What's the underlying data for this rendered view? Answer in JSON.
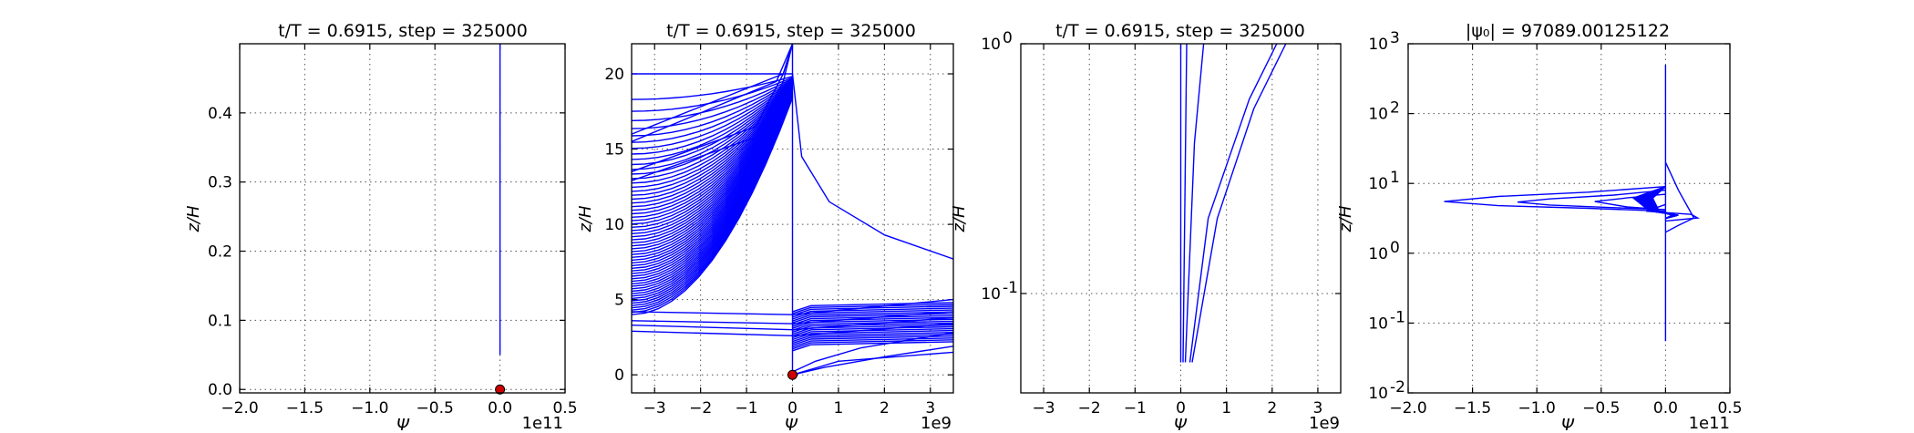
{
  "chart_data": [
    {
      "type": "line",
      "title": "t/T = 0.6915, step = 325000",
      "xlabel": "Ψ",
      "ylabel": "z/H",
      "x_offset_label": "1e11",
      "x_scale": "linear",
      "y_scale": "linear",
      "xlim": [
        -2.0,
        0.5
      ],
      "ylim": [
        -0.005,
        0.5
      ],
      "xticks": [
        -2.0,
        -1.5,
        -1.0,
        -0.5,
        0.0,
        0.5
      ],
      "xtick_labels": [
        "−2.0",
        "−1.5",
        "−1.0",
        "−0.5",
        "0.0",
        "0.5"
      ],
      "yticks": [
        0.0,
        0.1,
        0.2,
        0.3,
        0.4
      ],
      "ytick_labels": [
        "0.0",
        "0.1",
        "0.2",
        "0.3",
        "0.4"
      ],
      "grid": true,
      "color": "#0000ff",
      "marker_color": "#cc0000",
      "lines": [
        {
          "x": [
            0.0,
            0.0
          ],
          "y": [
            0.05,
            0.5
          ],
          "width": 5
        }
      ],
      "markers": [
        {
          "x": 0.0,
          "y": 0.0
        }
      ]
    },
    {
      "type": "line",
      "title": "t/T = 0.6915, step = 325000",
      "xlabel": "Ψ",
      "ylabel": "z/H",
      "x_offset_label": "1e9",
      "x_scale": "linear",
      "y_scale": "linear",
      "xlim": [
        -3.5,
        3.5
      ],
      "ylim": [
        -1.2,
        22
      ],
      "xticks": [
        -3,
        -2,
        -1,
        0,
        1,
        2,
        3
      ],
      "xtick_labels": [
        "−3",
        "−2",
        "−1",
        "0",
        "1",
        "2",
        "3"
      ],
      "yticks": [
        0,
        5,
        10,
        15,
        20
      ],
      "ytick_labels": [
        "0",
        "5",
        "10",
        "15",
        "20"
      ],
      "grid": true,
      "color": "#0000ff",
      "marker_color": "#cc0000",
      "lines": [
        {
          "x": [
            0.0,
            0.0
          ],
          "y": [
            0.0,
            22.0
          ],
          "width": 4
        },
        {
          "x": [
            -3.5,
            -0.2,
            0.0
          ],
          "y": [
            16.0,
            20.0,
            22.0
          ]
        },
        {
          "x": [
            -3.5,
            -0.35,
            0.0
          ],
          "y": [
            15.5,
            19.5,
            22.0
          ]
        },
        {
          "x": [
            -3.5,
            -0.8,
            -0.2,
            0.0
          ],
          "y": [
            13.5,
            16.5,
            20.0,
            22.0
          ]
        },
        {
          "x": [
            -3.5,
            -0.8,
            -0.2,
            0.0
          ],
          "y": [
            12.9,
            15.8,
            19.5,
            22.0
          ]
        },
        {
          "x": [
            0.0,
            0.2,
            0.8,
            2.0,
            3.5
          ],
          "y": [
            20.0,
            14.5,
            11.5,
            9.3,
            7.7
          ]
        },
        {
          "x": [
            -3.5,
            0.0,
            3.5
          ],
          "y": [
            4.2,
            4.0,
            5.0
          ]
        },
        {
          "x": [
            -3.5,
            0.0,
            3.5
          ],
          "y": [
            3.6,
            3.4,
            4.2
          ]
        },
        {
          "x": [
            -3.5,
            0.0,
            3.5
          ],
          "y": [
            3.3,
            3.0,
            3.8
          ]
        },
        {
          "x": [
            -3.5,
            0.0,
            3.5
          ],
          "y": [
            2.9,
            2.6,
            3.4
          ]
        },
        {
          "x": [
            0.0,
            0.5,
            1.5,
            3.5
          ],
          "y": [
            0.2,
            0.9,
            1.8,
            2.8
          ]
        },
        {
          "x": [
            0.0,
            0.7,
            2.0,
            3.5
          ],
          "y": [
            0.0,
            0.5,
            1.2,
            1.9
          ]
        },
        {
          "x": [
            0.0,
            1.0,
            3.5
          ],
          "y": [
            0.0,
            0.9,
            1.5
          ]
        }
      ],
      "fan_left": {
        "y_top": 20,
        "y_bottom": 4.0,
        "count": 60
      },
      "fan_right": {
        "y_top": 4.8,
        "y_bottom": 2.2,
        "count": 22
      },
      "markers": [
        {
          "x": 0.0,
          "y": 0.0
        }
      ]
    },
    {
      "type": "line",
      "title": "t/T = 0.6915, step = 325000",
      "xlabel": "Ψ",
      "ylabel": "z/H",
      "x_offset_label": "1e9",
      "x_scale": "linear",
      "y_scale": "log",
      "xlim": [
        -3.5,
        3.5
      ],
      "ylim": [
        0.04,
        1.0
      ],
      "xticks": [
        -3,
        -2,
        -1,
        0,
        1,
        2,
        3
      ],
      "xtick_labels": [
        "−3",
        "−2",
        "−1",
        "0",
        "1",
        "2",
        "3"
      ],
      "yticks": [
        0.1,
        1.0
      ],
      "ytick_labels": [
        {
          "base": "10",
          "exp": "-1"
        },
        {
          "base": "10",
          "exp": "0"
        }
      ],
      "grid": true,
      "color": "#0000ff",
      "lines": [
        {
          "x": [
            0.0,
            0.0
          ],
          "y": [
            0.053,
            1.0
          ],
          "width": 4
        },
        {
          "x": [
            0.05,
            0.13
          ],
          "y": [
            0.053,
            1.0
          ]
        },
        {
          "x": [
            0.1,
            0.3,
            0.5
          ],
          "y": [
            0.053,
            0.4,
            1.0
          ]
        },
        {
          "x": [
            0.2,
            0.6,
            1.5,
            2.1
          ],
          "y": [
            0.053,
            0.2,
            0.6,
            1.0
          ]
        },
        {
          "x": [
            0.25,
            0.8,
            1.6,
            2.3
          ],
          "y": [
            0.053,
            0.2,
            0.55,
            1.0
          ]
        }
      ]
    },
    {
      "type": "line",
      "title": "|ψ₀| = 97089.00125122",
      "xlabel": "Ψ",
      "ylabel": "z/H",
      "x_offset_label": "1e11",
      "x_scale": "linear",
      "y_scale": "log",
      "xlim": [
        -2.0,
        0.5
      ],
      "ylim": [
        0.01,
        1000
      ],
      "xticks": [
        -2.0,
        -1.5,
        -1.0,
        -0.5,
        0.0,
        0.5
      ],
      "xtick_labels": [
        "−2.0",
        "−1.5",
        "−1.0",
        "−0.5",
        "0.0",
        "0.5"
      ],
      "yticks": [
        0.01,
        0.1,
        1,
        10,
        100,
        1000
      ],
      "ytick_labels": [
        {
          "base": "10",
          "exp": "-2"
        },
        {
          "base": "10",
          "exp": "-1"
        },
        {
          "base": "10",
          "exp": "0"
        },
        {
          "base": "10",
          "exp": "1"
        },
        {
          "base": "10",
          "exp": "2"
        },
        {
          "base": "10",
          "exp": "3"
        }
      ],
      "grid": true,
      "color": "#0000ff",
      "lines": [
        {
          "x": [
            0.0,
            0.0
          ],
          "y": [
            0.055,
            500
          ],
          "width": 3
        },
        {
          "x": [
            0.0,
            -0.6,
            -1.3,
            -1.72,
            -1.3,
            -0.6,
            0.0
          ],
          "y": [
            9.0,
            7.5,
            6.5,
            5.5,
            4.8,
            4.4,
            4.0
          ]
        },
        {
          "x": [
            0.0,
            -0.4,
            -0.9,
            -1.15,
            -0.9,
            -0.4,
            0.0
          ],
          "y": [
            8.0,
            6.8,
            6.0,
            5.4,
            4.9,
            4.5,
            4.2
          ]
        },
        {
          "x": [
            0.0,
            -0.3,
            -0.55,
            -0.3,
            0.0
          ],
          "y": [
            7.0,
            6.2,
            5.5,
            4.6,
            4.2
          ]
        },
        {
          "x": [
            0.0,
            0.1,
            0.22,
            0.1,
            0.0
          ],
          "y": [
            20,
            8,
            3.2,
            2.5,
            2.0
          ]
        },
        {
          "x": [
            0.0,
            -0.15,
            0.2,
            0.25,
            0.0
          ],
          "y": [
            5.0,
            4.0,
            3.6,
            3.2,
            2.9
          ]
        }
      ],
      "fan_blob": {
        "x_min": -0.25,
        "x_max": 0.1,
        "y_min": 3.5,
        "y_max": 9.0,
        "count": 24
      }
    }
  ]
}
